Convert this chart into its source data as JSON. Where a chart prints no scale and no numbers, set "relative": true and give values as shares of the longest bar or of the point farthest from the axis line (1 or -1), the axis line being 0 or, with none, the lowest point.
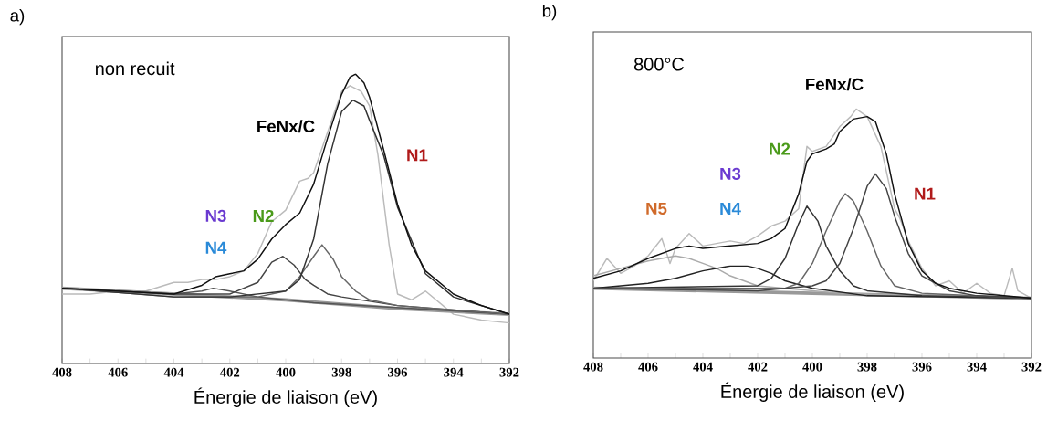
{
  "chart_data": [
    {
      "type": "line",
      "title": "a)",
      "xlabel": "Énergie de liaison (eV)",
      "relative": true,
      "xlim": [
        408,
        392
      ],
      "xticks": [
        408,
        {
          "value": 407,
          "label": null
        },
        406,
        {
          "value": 405,
          "label": null
        },
        404,
        {
          "value": 403,
          "label": null
        },
        402,
        {
          "value": 401,
          "label": null
        },
        400,
        {
          "value": 399,
          "label": null
        },
        398,
        {
          "value": 397,
          "label": null
        },
        396,
        {
          "value": 395,
          "label": null
        },
        394,
        {
          "value": 393,
          "label": null
        },
        392
      ],
      "tick_labels": "x",
      "marker": "none",
      "series": [
        {
          "color": "#bbbbbb",
          "x": [
            408,
            407,
            406,
            405,
            404,
            403.5,
            403,
            402.5,
            402,
            401.5,
            401,
            400.5,
            400,
            399.5,
            399.2,
            399,
            398.5,
            398,
            397.7,
            397.3,
            397,
            396.7,
            396.3,
            396,
            395.5,
            395,
            394.5,
            394,
            393,
            392
          ],
          "values": [
            0.24,
            0.24,
            0.25,
            0.25,
            0.28,
            0.28,
            0.29,
            0.29,
            0.3,
            0.32,
            0.38,
            0.49,
            0.53,
            0.63,
            0.64,
            0.66,
            0.8,
            0.94,
            0.96,
            0.94,
            0.89,
            0.72,
            0.41,
            0.24,
            0.22,
            0.25,
            0.21,
            0.17,
            0.15,
            0.14
          ]
        },
        {
          "color": "#999999",
          "x": [
            408,
            400,
            396,
            392
          ],
          "values": [
            0.26,
            0.22,
            0.19,
            0.17
          ]
        },
        {
          "color": "#555555",
          "x": [
            408,
            404,
            403,
            402.6,
            402,
            401,
            399,
            392
          ],
          "values": [
            0.26,
            0.24,
            0.25,
            0.26,
            0.25,
            0.23,
            0.21,
            0.17
          ]
        },
        {
          "color": "#444444",
          "x": [
            408,
            404,
            402,
            401,
            400.5,
            400.1,
            399.7,
            399.3,
            399,
            398.5,
            398,
            396,
            392
          ],
          "values": [
            0.26,
            0.24,
            0.24,
            0.28,
            0.35,
            0.37,
            0.34,
            0.29,
            0.27,
            0.24,
            0.23,
            0.2,
            0.17
          ]
        },
        {
          "color": "#666666",
          "x": [
            408,
            404,
            401,
            400,
            399.5,
            399,
            398.7,
            398.3,
            398,
            397.5,
            397,
            396,
            392
          ],
          "values": [
            0.26,
            0.23,
            0.23,
            0.25,
            0.3,
            0.37,
            0.41,
            0.36,
            0.3,
            0.25,
            0.22,
            0.2,
            0.17
          ]
        },
        {
          "color": "#333333",
          "x": [
            408,
            404,
            402,
            400,
            399.5,
            399,
            398.5,
            398,
            397.6,
            397.2,
            397,
            396.5,
            396,
            395,
            394,
            392
          ],
          "values": [
            0.26,
            0.23,
            0.23,
            0.25,
            0.29,
            0.43,
            0.69,
            0.87,
            0.91,
            0.89,
            0.84,
            0.72,
            0.54,
            0.31,
            0.23,
            0.17
          ]
        },
        {
          "color": "#111111",
          "x": [
            408,
            406,
            404,
            403,
            402.5,
            402,
            401.5,
            401,
            400.5,
            400,
            399.5,
            399,
            398.5,
            398,
            397.7,
            397.5,
            397.2,
            397,
            396.5,
            396,
            395.5,
            395,
            394,
            393,
            392
          ],
          "values": [
            0.26,
            0.25,
            0.24,
            0.27,
            0.3,
            0.31,
            0.32,
            0.36,
            0.43,
            0.48,
            0.52,
            0.62,
            0.78,
            0.93,
            0.99,
            1.0,
            0.97,
            0.92,
            0.74,
            0.55,
            0.41,
            0.32,
            0.24,
            0.2,
            0.17
          ]
        }
      ],
      "annotations": [
        "non recuit",
        "FeNx/C",
        "N1",
        "N2",
        "N3",
        "N4"
      ]
    },
    {
      "type": "line",
      "title": "b)",
      "xlabel": "Énergie de liaison (eV)",
      "relative": true,
      "xlim": [
        408,
        392
      ],
      "xticks": [
        408,
        {
          "value": 407,
          "label": null
        },
        406,
        {
          "value": 405,
          "label": null
        },
        404,
        {
          "value": 403,
          "label": null
        },
        402,
        {
          "value": 401,
          "label": null
        },
        400,
        {
          "value": 399,
          "label": null
        },
        398,
        {
          "value": 397,
          "label": null
        },
        396,
        {
          "value": 395,
          "label": null
        },
        394,
        {
          "value": 393,
          "label": null
        },
        392
      ],
      "tick_labels": "x",
      "marker": "none",
      "series": [
        {
          "color": "#bbbbbb",
          "x": [
            408,
            407.5,
            407,
            406.5,
            406,
            405.5,
            405.2,
            405,
            404.5,
            404,
            403.5,
            403,
            402.5,
            402,
            401.5,
            401,
            400.5,
            400.2,
            400,
            399.5,
            399,
            398.6,
            398.4,
            398,
            397.5,
            397,
            396.8,
            396.5,
            396,
            395.5,
            395,
            394.5,
            394,
            393.5,
            393,
            392.7,
            392.5,
            392
          ],
          "values": [
            0.31,
            0.4,
            0.34,
            0.37,
            0.41,
            0.48,
            0.38,
            0.44,
            0.5,
            0.45,
            0.46,
            0.47,
            0.46,
            0.49,
            0.53,
            0.55,
            0.6,
            0.85,
            0.83,
            0.85,
            0.93,
            0.97,
            1.0,
            0.97,
            0.85,
            0.6,
            0.56,
            0.47,
            0.36,
            0.29,
            0.31,
            0.26,
            0.3,
            0.26,
            0.25,
            0.36,
            0.27,
            0.24
          ]
        },
        {
          "color": "#999999",
          "x": [
            408,
            400,
            392
          ],
          "values": [
            0.28,
            0.26,
            0.24
          ]
        },
        {
          "color": "#aaaaaa",
          "x": [
            408,
            407,
            406,
            405.5,
            405,
            404.5,
            404,
            403.5,
            403,
            402.5,
            402,
            401,
            399,
            392
          ],
          "values": [
            0.33,
            0.36,
            0.39,
            0.4,
            0.41,
            0.4,
            0.38,
            0.36,
            0.33,
            0.31,
            0.29,
            0.28,
            0.26,
            0.24
          ]
        },
        {
          "color": "#222222",
          "x": [
            408,
            406,
            405,
            404,
            403,
            402.4,
            402,
            401.5,
            401,
            400,
            398,
            392
          ],
          "values": [
            0.28,
            0.3,
            0.32,
            0.35,
            0.37,
            0.37,
            0.36,
            0.34,
            0.31,
            0.28,
            0.25,
            0.24
          ]
        },
        {
          "color": "#333333",
          "x": [
            408,
            402,
            401.5,
            401,
            400.5,
            400.2,
            399.8,
            399.5,
            399,
            398.5,
            398,
            396,
            392
          ],
          "values": [
            0.28,
            0.29,
            0.32,
            0.4,
            0.54,
            0.61,
            0.55,
            0.45,
            0.35,
            0.29,
            0.27,
            0.25,
            0.24
          ]
        },
        {
          "color": "#666666",
          "x": [
            408,
            401,
            400.5,
            400,
            399.5,
            399,
            398.8,
            398.5,
            398,
            397.5,
            397,
            396,
            392
          ],
          "values": [
            0.28,
            0.28,
            0.3,
            0.38,
            0.51,
            0.63,
            0.66,
            0.63,
            0.51,
            0.37,
            0.29,
            0.26,
            0.24
          ]
        },
        {
          "color": "#444444",
          "x": [
            408,
            402,
            400,
            399.5,
            399,
            398.5,
            398,
            397.7,
            397.3,
            397,
            396.5,
            396,
            395,
            394,
            392
          ],
          "values": [
            0.28,
            0.27,
            0.29,
            0.31,
            0.38,
            0.52,
            0.69,
            0.74,
            0.68,
            0.57,
            0.42,
            0.33,
            0.27,
            0.25,
            0.24
          ]
        },
        {
          "color": "#111111",
          "x": [
            408,
            407,
            406,
            405,
            404.5,
            404,
            403,
            402,
            401.5,
            401,
            400.5,
            400.2,
            400,
            399.5,
            399.2,
            399,
            398.5,
            398,
            397.7,
            397.3,
            397,
            396.5,
            396,
            395.5,
            395,
            394,
            393,
            392
          ],
          "values": [
            0.32,
            0.35,
            0.4,
            0.44,
            0.45,
            0.44,
            0.45,
            0.46,
            0.48,
            0.52,
            0.66,
            0.79,
            0.82,
            0.84,
            0.86,
            0.91,
            0.96,
            0.97,
            0.95,
            0.82,
            0.66,
            0.46,
            0.35,
            0.3,
            0.28,
            0.26,
            0.25,
            0.24
          ]
        }
      ],
      "annotations": [
        "800°C",
        "FeNx/C",
        "N2",
        "N3",
        "N4",
        "N5",
        "N1"
      ]
    }
  ]
}
